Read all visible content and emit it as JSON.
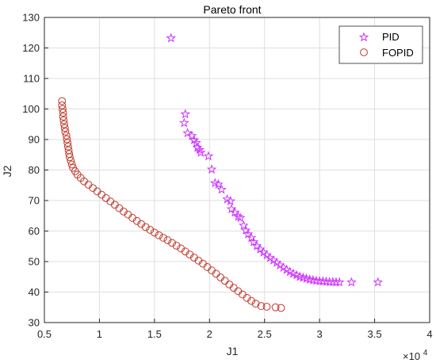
{
  "chart_data": {
    "type": "scatter",
    "title": "Pareto front",
    "xlabel": "J1",
    "ylabel": "J2",
    "x_multiplier_label": "×10",
    "x_multiplier_exp": "4",
    "xlim": [
      0.5,
      4
    ],
    "ylim": [
      30,
      130
    ],
    "xticks": [
      "0.5",
      "1",
      "1.5",
      "2",
      "2.5",
      "3",
      "3.5",
      "4"
    ],
    "yticks": [
      "30",
      "40",
      "50",
      "60",
      "70",
      "80",
      "90",
      "100",
      "110",
      "120",
      "130"
    ],
    "grid": true,
    "legend_position": "top-right",
    "series": [
      {
        "name": "PID",
        "marker": "star",
        "color": "#cc33ff",
        "points": [
          [
            1.65,
            123.2
          ],
          [
            1.78,
            98.3
          ],
          [
            1.77,
            95.4
          ],
          [
            1.8,
            92.1
          ],
          [
            1.84,
            91.2
          ],
          [
            1.86,
            89.8
          ],
          [
            1.88,
            88.9
          ],
          [
            1.89,
            87.3
          ],
          [
            1.91,
            86.6
          ],
          [
            1.92,
            85.7
          ],
          [
            1.99,
            84.5
          ],
          [
            2.02,
            80.2
          ],
          [
            2.05,
            75.7
          ],
          [
            2.08,
            75.3
          ],
          [
            2.11,
            73.6
          ],
          [
            2.16,
            70.4
          ],
          [
            2.19,
            69.8
          ],
          [
            2.2,
            67.2
          ],
          [
            2.23,
            66.1
          ],
          [
            2.26,
            64.7
          ],
          [
            2.28,
            64.3
          ],
          [
            2.31,
            61.8
          ],
          [
            2.33,
            60.2
          ],
          [
            2.35,
            59.0
          ],
          [
            2.38,
            57.8
          ],
          [
            2.4,
            56.4
          ],
          [
            2.43,
            55.1
          ],
          [
            2.46,
            54.0
          ],
          [
            2.49,
            53.0
          ],
          [
            2.52,
            52.1
          ],
          [
            2.55,
            51.2
          ],
          [
            2.58,
            50.4
          ],
          [
            2.61,
            49.6
          ],
          [
            2.64,
            48.8
          ],
          [
            2.67,
            48.0
          ],
          [
            2.7,
            47.3
          ],
          [
            2.73,
            46.6
          ],
          [
            2.76,
            46.0
          ],
          [
            2.79,
            45.5
          ],
          [
            2.82,
            45.0
          ],
          [
            2.85,
            44.7
          ],
          [
            2.88,
            44.4
          ],
          [
            2.91,
            44.1
          ],
          [
            2.94,
            43.9
          ],
          [
            2.97,
            43.7
          ],
          [
            3.0,
            43.6
          ],
          [
            3.03,
            43.5
          ],
          [
            3.06,
            43.4
          ],
          [
            3.09,
            43.3
          ],
          [
            3.12,
            43.3
          ],
          [
            3.15,
            43.2
          ],
          [
            3.18,
            43.2
          ],
          [
            3.29,
            43.2
          ],
          [
            3.53,
            43.2
          ]
        ]
      },
      {
        "name": "FOPID",
        "marker": "circle",
        "color": "#c0392b",
        "points": [
          [
            0.66,
            102.6
          ],
          [
            0.66,
            101.2
          ],
          [
            0.665,
            100.0
          ],
          [
            0.67,
            98.8
          ],
          [
            0.67,
            97.5
          ],
          [
            0.675,
            96.3
          ],
          [
            0.68,
            95.0
          ],
          [
            0.685,
            93.8
          ],
          [
            0.69,
            92.6
          ],
          [
            0.7,
            91.3
          ],
          [
            0.705,
            90.1
          ],
          [
            0.71,
            88.9
          ],
          [
            0.715,
            87.7
          ],
          [
            0.72,
            86.5
          ],
          [
            0.725,
            85.3
          ],
          [
            0.73,
            84.2
          ],
          [
            0.74,
            83.0
          ],
          [
            0.75,
            81.8
          ],
          [
            0.76,
            80.7
          ],
          [
            0.78,
            79.6
          ],
          [
            0.8,
            78.5
          ],
          [
            0.83,
            77.4
          ],
          [
            0.86,
            76.3
          ],
          [
            0.9,
            75.2
          ],
          [
            0.94,
            74.1
          ],
          [
            0.98,
            73.0
          ],
          [
            1.02,
            71.9
          ],
          [
            1.06,
            70.8
          ],
          [
            1.1,
            69.7
          ],
          [
            1.14,
            68.6
          ],
          [
            1.18,
            67.5
          ],
          [
            1.22,
            66.4
          ],
          [
            1.26,
            65.4
          ],
          [
            1.3,
            64.3
          ],
          [
            1.34,
            63.3
          ],
          [
            1.38,
            62.3
          ],
          [
            1.42,
            61.3
          ],
          [
            1.46,
            60.4
          ],
          [
            1.5,
            59.5
          ],
          [
            1.54,
            58.6
          ],
          [
            1.58,
            57.8
          ],
          [
            1.62,
            57.0
          ],
          [
            1.66,
            56.1
          ],
          [
            1.7,
            55.2
          ],
          [
            1.74,
            54.3
          ],
          [
            1.78,
            53.3
          ],
          [
            1.82,
            52.3
          ],
          [
            1.86,
            51.3
          ],
          [
            1.9,
            50.3
          ],
          [
            1.94,
            49.3
          ],
          [
            1.98,
            48.2
          ],
          [
            2.02,
            47.1
          ],
          [
            2.06,
            46.0
          ],
          [
            2.1,
            44.8
          ],
          [
            2.14,
            43.7
          ],
          [
            2.18,
            42.5
          ],
          [
            2.22,
            41.4
          ],
          [
            2.26,
            40.3
          ],
          [
            2.3,
            39.2
          ],
          [
            2.34,
            38.1
          ],
          [
            2.38,
            37.1
          ],
          [
            2.42,
            36.2
          ],
          [
            2.47,
            35.4
          ],
          [
            2.52,
            35.2
          ],
          [
            2.6,
            35.0
          ],
          [
            2.65,
            34.8
          ]
        ]
      }
    ]
  }
}
